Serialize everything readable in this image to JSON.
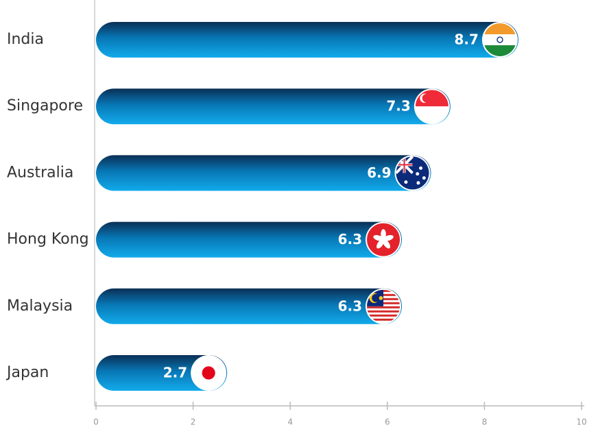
{
  "chart_data": {
    "type": "bar",
    "orientation": "horizontal",
    "categories": [
      "India",
      "Singapore",
      "Australia",
      "Hong Kong",
      "Malaysia",
      "Japan"
    ],
    "values": [
      8.7,
      7.3,
      6.9,
      6.3,
      6.3,
      2.7
    ],
    "color": "#0a9ad8",
    "xlim": [
      0,
      10
    ],
    "xticks": [
      0,
      2,
      4,
      6,
      8,
      10
    ]
  }
}
